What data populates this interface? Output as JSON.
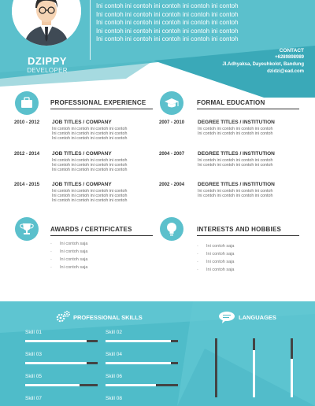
{
  "profile": {
    "name": "DZIPPY",
    "role": "DEVELOPER",
    "about_lines": [
      "Ini contoh ini contoh ini contoh ini contoh ini contoh",
      "Ini contoh ini contoh ini contoh ini contoh ini contoh",
      "Ini contoh ini contoh ini contoh ini contoh ini contoh",
      "Ini contoh ini contoh ini contoh ini contoh ini contoh",
      "Ini contoh ini contoh ini contoh ini contoh ini contoh"
    ]
  },
  "contact": {
    "title": "CONTACT",
    "phone": "+6289898989",
    "address": "Jl.Adhyaksa, Dayeuhkolot, Bandung",
    "email": "dzidzi@ead.com"
  },
  "experience": {
    "title": "PROFESSIONAL EXPERIENCE",
    "icon": "briefcase-icon",
    "items": [
      {
        "years": "2010 - 2012",
        "title": "JOB TITLES / COMPANY",
        "desc": [
          "Ini contoh ini contoh ini contoh ini contoh",
          "Ini contoh ini contoh ini contoh ini contoh",
          "Ini contoh ini contoh ini contoh ini contoh"
        ]
      },
      {
        "years": "2012 - 2014",
        "title": "JOB TITLES / COMPANY",
        "desc": [
          "Ini contoh ini contoh ini contoh ini contoh",
          "Ini contoh ini contoh ini contoh ini contoh",
          "Ini contoh ini contoh ini contoh ini contoh"
        ]
      },
      {
        "years": "2014 - 2015",
        "title": "JOB TITLES / COMPANY",
        "desc": [
          "Ini contoh ini contoh ini contoh ini contoh",
          "Ini contoh ini contoh ini contoh ini contoh",
          "Ini contoh ini contoh ini contoh ini contoh"
        ]
      }
    ]
  },
  "education": {
    "title": "FORMAL EDUCATION",
    "icon": "graduation-cap-icon",
    "items": [
      {
        "years": "2007 - 2010",
        "title": "DEGREE TITLES / INSTITUTION",
        "desc": [
          "Ini contoh ini contoh ini contoh ini contoh",
          "Ini contoh ini contoh ini contoh ini contoh"
        ]
      },
      {
        "years": "2004 - 2007",
        "title": "DEGREE TITLES / INSTITUTION",
        "desc": [
          "Ini contoh ini contoh ini contoh ini contoh",
          "Ini contoh ini contoh ini contoh ini contoh"
        ]
      },
      {
        "years": "2002 - 2004",
        "title": "DEGREE TITLES / INSTITUTION",
        "desc": [
          "Ini contoh ini contoh ini contoh ini contoh",
          "Ini contoh ini contoh ini contoh ini contoh"
        ]
      }
    ]
  },
  "awards": {
    "title": "AWARDS / CERTIFICATES",
    "icon": "trophy-icon",
    "items": [
      "Ini contoh saja",
      "Ini contoh saja",
      "Ini contoh saja",
      "Ini contoh saja"
    ]
  },
  "interests": {
    "title": "INTERESTS AND HOBBIES",
    "icon": "lightbulb-icon",
    "items": [
      "Ini contoh saja",
      "Ini contoh saja",
      "Ini contoh saja",
      "Ini contoh saja"
    ]
  },
  "skills": {
    "title": "PROFESSIONAL SKILLS",
    "icon": "gears-icon",
    "items": [
      {
        "label": "Skill 01",
        "level": 0.85
      },
      {
        "label": "Skill 02",
        "level": 0.9
      },
      {
        "label": "Skill 03",
        "level": 0.85
      },
      {
        "label": "Skill 04",
        "level": 0.9
      },
      {
        "label": "Skill 05",
        "level": 0.75
      },
      {
        "label": "Skill 06",
        "level": 0.7
      },
      {
        "label": "Skill 07",
        "level": null
      },
      {
        "label": "Skill 08",
        "level": null
      }
    ]
  },
  "languages": {
    "title": "LANGUAGES",
    "icon": "speech-bubble-icon",
    "items": [
      {
        "level": 1.0
      },
      {
        "level": 0.2
      },
      {
        "level": 0.35
      }
    ]
  },
  "colors": {
    "accent": "#5bc0cc",
    "accent_dark": "#3aa9b8",
    "bar_track": "#444444",
    "text_dark": "#333333"
  }
}
